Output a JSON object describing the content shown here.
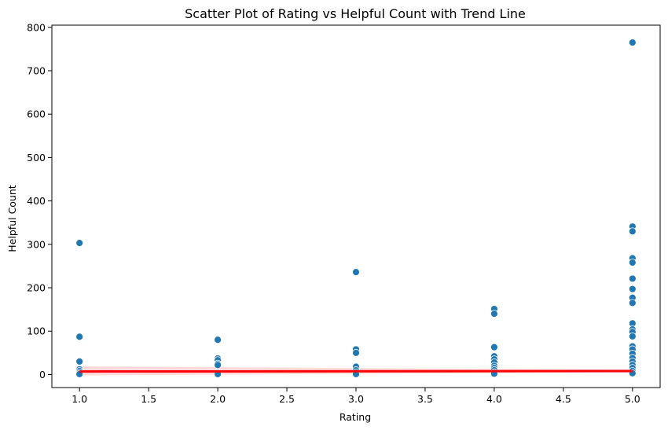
{
  "chart_data": {
    "type": "scatter",
    "title": "Scatter Plot of Rating vs Helpful Count with Trend Line",
    "xlabel": "Rating",
    "ylabel": "Helpful Count",
    "xlim": [
      0.8,
      5.2
    ],
    "ylim": [
      -30,
      805
    ],
    "x_ticks": [
      1.0,
      1.5,
      2.0,
      2.5,
      3.0,
      3.5,
      4.0,
      4.5,
      5.0
    ],
    "x_tick_labels": [
      "1.0",
      "1.5",
      "2.0",
      "2.5",
      "3.0",
      "3.5",
      "4.0",
      "4.5",
      "5.0"
    ],
    "y_ticks": [
      0,
      100,
      200,
      300,
      400,
      500,
      600,
      700,
      800
    ],
    "y_tick_labels": [
      "0",
      "100",
      "200",
      "300",
      "400",
      "500",
      "600",
      "700",
      "800"
    ],
    "grid": false,
    "point_color": "#1f77b4",
    "trend_color": "#ff0000",
    "points": [
      {
        "x": 1,
        "y": 303
      },
      {
        "x": 1,
        "y": 87
      },
      {
        "x": 1,
        "y": 30
      },
      {
        "x": 1,
        "y": 12
      },
      {
        "x": 1,
        "y": 8
      },
      {
        "x": 1,
        "y": 4
      },
      {
        "x": 1,
        "y": 1
      },
      {
        "x": 2,
        "y": 80
      },
      {
        "x": 2,
        "y": 37
      },
      {
        "x": 2,
        "y": 33
      },
      {
        "x": 2,
        "y": 25
      },
      {
        "x": 2,
        "y": 22
      },
      {
        "x": 2,
        "y": 3
      },
      {
        "x": 2,
        "y": 1
      },
      {
        "x": 3,
        "y": 236
      },
      {
        "x": 3,
        "y": 58
      },
      {
        "x": 3,
        "y": 50
      },
      {
        "x": 3,
        "y": 18
      },
      {
        "x": 3,
        "y": 10
      },
      {
        "x": 3,
        "y": 5
      },
      {
        "x": 3,
        "y": 1
      },
      {
        "x": 4,
        "y": 151
      },
      {
        "x": 4,
        "y": 140
      },
      {
        "x": 4,
        "y": 63
      },
      {
        "x": 4,
        "y": 42
      },
      {
        "x": 4,
        "y": 35
      },
      {
        "x": 4,
        "y": 28
      },
      {
        "x": 4,
        "y": 20
      },
      {
        "x": 4,
        "y": 15
      },
      {
        "x": 4,
        "y": 10
      },
      {
        "x": 4,
        "y": 5
      },
      {
        "x": 4,
        "y": 2
      },
      {
        "x": 5,
        "y": 765
      },
      {
        "x": 5,
        "y": 341
      },
      {
        "x": 5,
        "y": 330
      },
      {
        "x": 5,
        "y": 268
      },
      {
        "x": 5,
        "y": 258
      },
      {
        "x": 5,
        "y": 221
      },
      {
        "x": 5,
        "y": 197
      },
      {
        "x": 5,
        "y": 177
      },
      {
        "x": 5,
        "y": 165
      },
      {
        "x": 5,
        "y": 118
      },
      {
        "x": 5,
        "y": 104
      },
      {
        "x": 5,
        "y": 98
      },
      {
        "x": 5,
        "y": 88
      },
      {
        "x": 5,
        "y": 65
      },
      {
        "x": 5,
        "y": 58
      },
      {
        "x": 5,
        "y": 48
      },
      {
        "x": 5,
        "y": 38
      },
      {
        "x": 5,
        "y": 30
      },
      {
        "x": 5,
        "y": 22
      },
      {
        "x": 5,
        "y": 15
      },
      {
        "x": 5,
        "y": 8
      },
      {
        "x": 5,
        "y": 3
      }
    ],
    "trend": {
      "x": [
        1.0,
        5.0
      ],
      "y": [
        7,
        8
      ],
      "ci_lower": [
        -2,
        5
      ],
      "ci_upper": [
        19,
        11
      ]
    }
  }
}
